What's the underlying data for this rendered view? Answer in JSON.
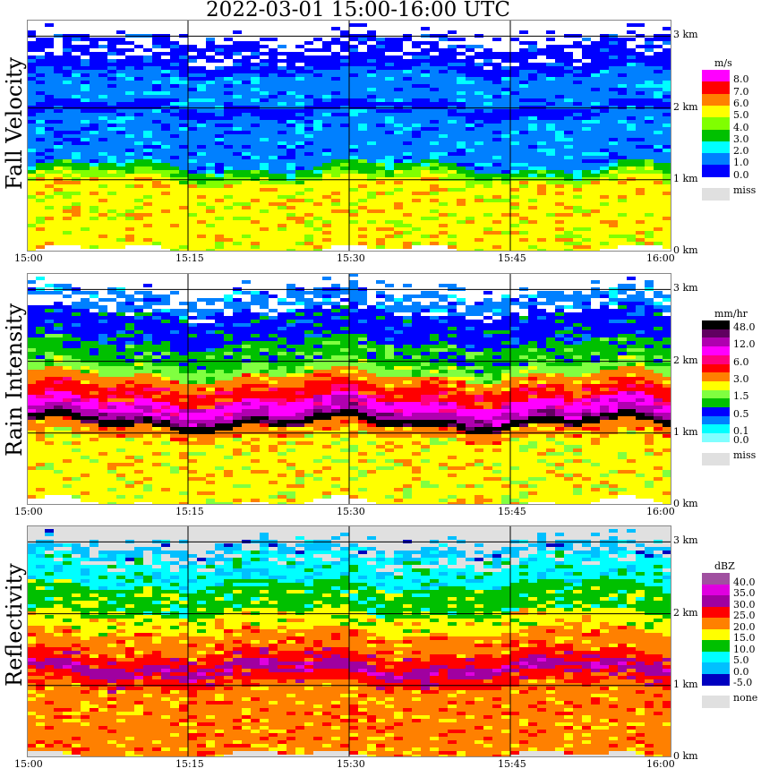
{
  "title": "2022-03-01   15:00-16:00 UTC",
  "chart_data": [
    {
      "type": "heatmap",
      "title": "Fall Velocity",
      "unit": "m/s",
      "x_ticks": [
        "15:00",
        "15:15",
        "15:30",
        "15:45",
        "16:00"
      ],
      "y_ticks": [
        "0 km",
        "1 km",
        "2 km",
        "3 km"
      ],
      "ylim_km": [
        0,
        3.2
      ],
      "legend": {
        "colors": [
          "#ff00ff",
          "#ff0000",
          "#ff8000",
          "#ffff00",
          "#80ff00",
          "#00c000",
          "#00ffff",
          "#0080ff",
          "#0000ff"
        ],
        "labels": [
          "8.0",
          "7.0",
          "6.0",
          "5.0",
          "4.0",
          "3.0",
          "2.0",
          "1.0",
          "0.0"
        ],
        "missing_label": "miss",
        "missing_color": "#e0e0e0"
      },
      "layers_km": [
        [
          0,
          1.0,
          3
        ],
        [
          1.0,
          1.08,
          4
        ],
        [
          1.08,
          1.18,
          5
        ],
        [
          1.18,
          1.9,
          7
        ],
        [
          1.9,
          2.05,
          8
        ],
        [
          2.05,
          2.5,
          7
        ],
        [
          2.5,
          2.95,
          8
        ]
      ],
      "background": "#ffffff"
    },
    {
      "type": "heatmap",
      "title": "Rain Intensity",
      "unit": "mm/hr",
      "x_ticks": [
        "15:00",
        "15:15",
        "15:30",
        "15:45",
        "16:00"
      ],
      "y_ticks": [
        "0 km",
        "1 km",
        "2 km",
        "3 km"
      ],
      "ylim_km": [
        0,
        3.2
      ],
      "legend": {
        "colors": [
          "#000000",
          "#600060",
          "#b000b0",
          "#ff00ff",
          "#ff0080",
          "#ff0000",
          "#ff8000",
          "#ffff00",
          "#80ff40",
          "#00c000",
          "#0000ff",
          "#0080ff",
          "#00ffff",
          "#80ffff"
        ],
        "labels": [
          "48.0",
          "",
          "12.0",
          "",
          "6.0",
          "",
          "3.0",
          "",
          "1.5",
          "",
          "0.5",
          "",
          "0.1",
          "0.0"
        ],
        "missing_label": "miss",
        "missing_color": "#e0e0e0"
      },
      "layers_km": [
        [
          0,
          0.95,
          7
        ],
        [
          0.95,
          1.1,
          6
        ],
        [
          1.1,
          1.2,
          0
        ],
        [
          1.2,
          1.3,
          2
        ],
        [
          1.3,
          1.45,
          3
        ],
        [
          1.45,
          1.65,
          5
        ],
        [
          1.65,
          1.8,
          6
        ],
        [
          1.8,
          1.95,
          8
        ],
        [
          1.95,
          2.25,
          9
        ],
        [
          2.25,
          2.7,
          10
        ],
        [
          2.7,
          2.95,
          11
        ]
      ],
      "background": "#ffffff"
    },
    {
      "type": "heatmap",
      "title": "Reflectivity",
      "unit": "dBZ",
      "x_ticks": [
        "15:00",
        "15:15",
        "15:30",
        "15:45",
        "16:00"
      ],
      "y_ticks": [
        "0 km",
        "1 km",
        "2 km",
        "3 km"
      ],
      "ylim_km": [
        0,
        3.2
      ],
      "legend": {
        "colors": [
          "#a050a0",
          "#e000e0",
          "#a000a0",
          "#ff0000",
          "#ff8000",
          "#ffff00",
          "#00c000",
          "#00ffff",
          "#00c0ff",
          "#0000c0"
        ],
        "labels": [
          "40.0",
          "35.0",
          "30.0",
          "25.0",
          "20.0",
          "15.0",
          "10.0",
          "5.0",
          "0.0",
          "-5.0"
        ],
        "missing_label": "none",
        "missing_color": "#e0e0e0"
      },
      "layers_km": [
        [
          0,
          1.0,
          4
        ],
        [
          1.0,
          1.15,
          3
        ],
        [
          1.15,
          1.3,
          2
        ],
        [
          1.3,
          1.45,
          3
        ],
        [
          1.45,
          1.75,
          4
        ],
        [
          1.75,
          2.0,
          5
        ],
        [
          2.0,
          2.4,
          6
        ],
        [
          2.4,
          2.8,
          7
        ],
        [
          2.8,
          2.95,
          8
        ]
      ],
      "background": "#e0e0e0"
    }
  ]
}
